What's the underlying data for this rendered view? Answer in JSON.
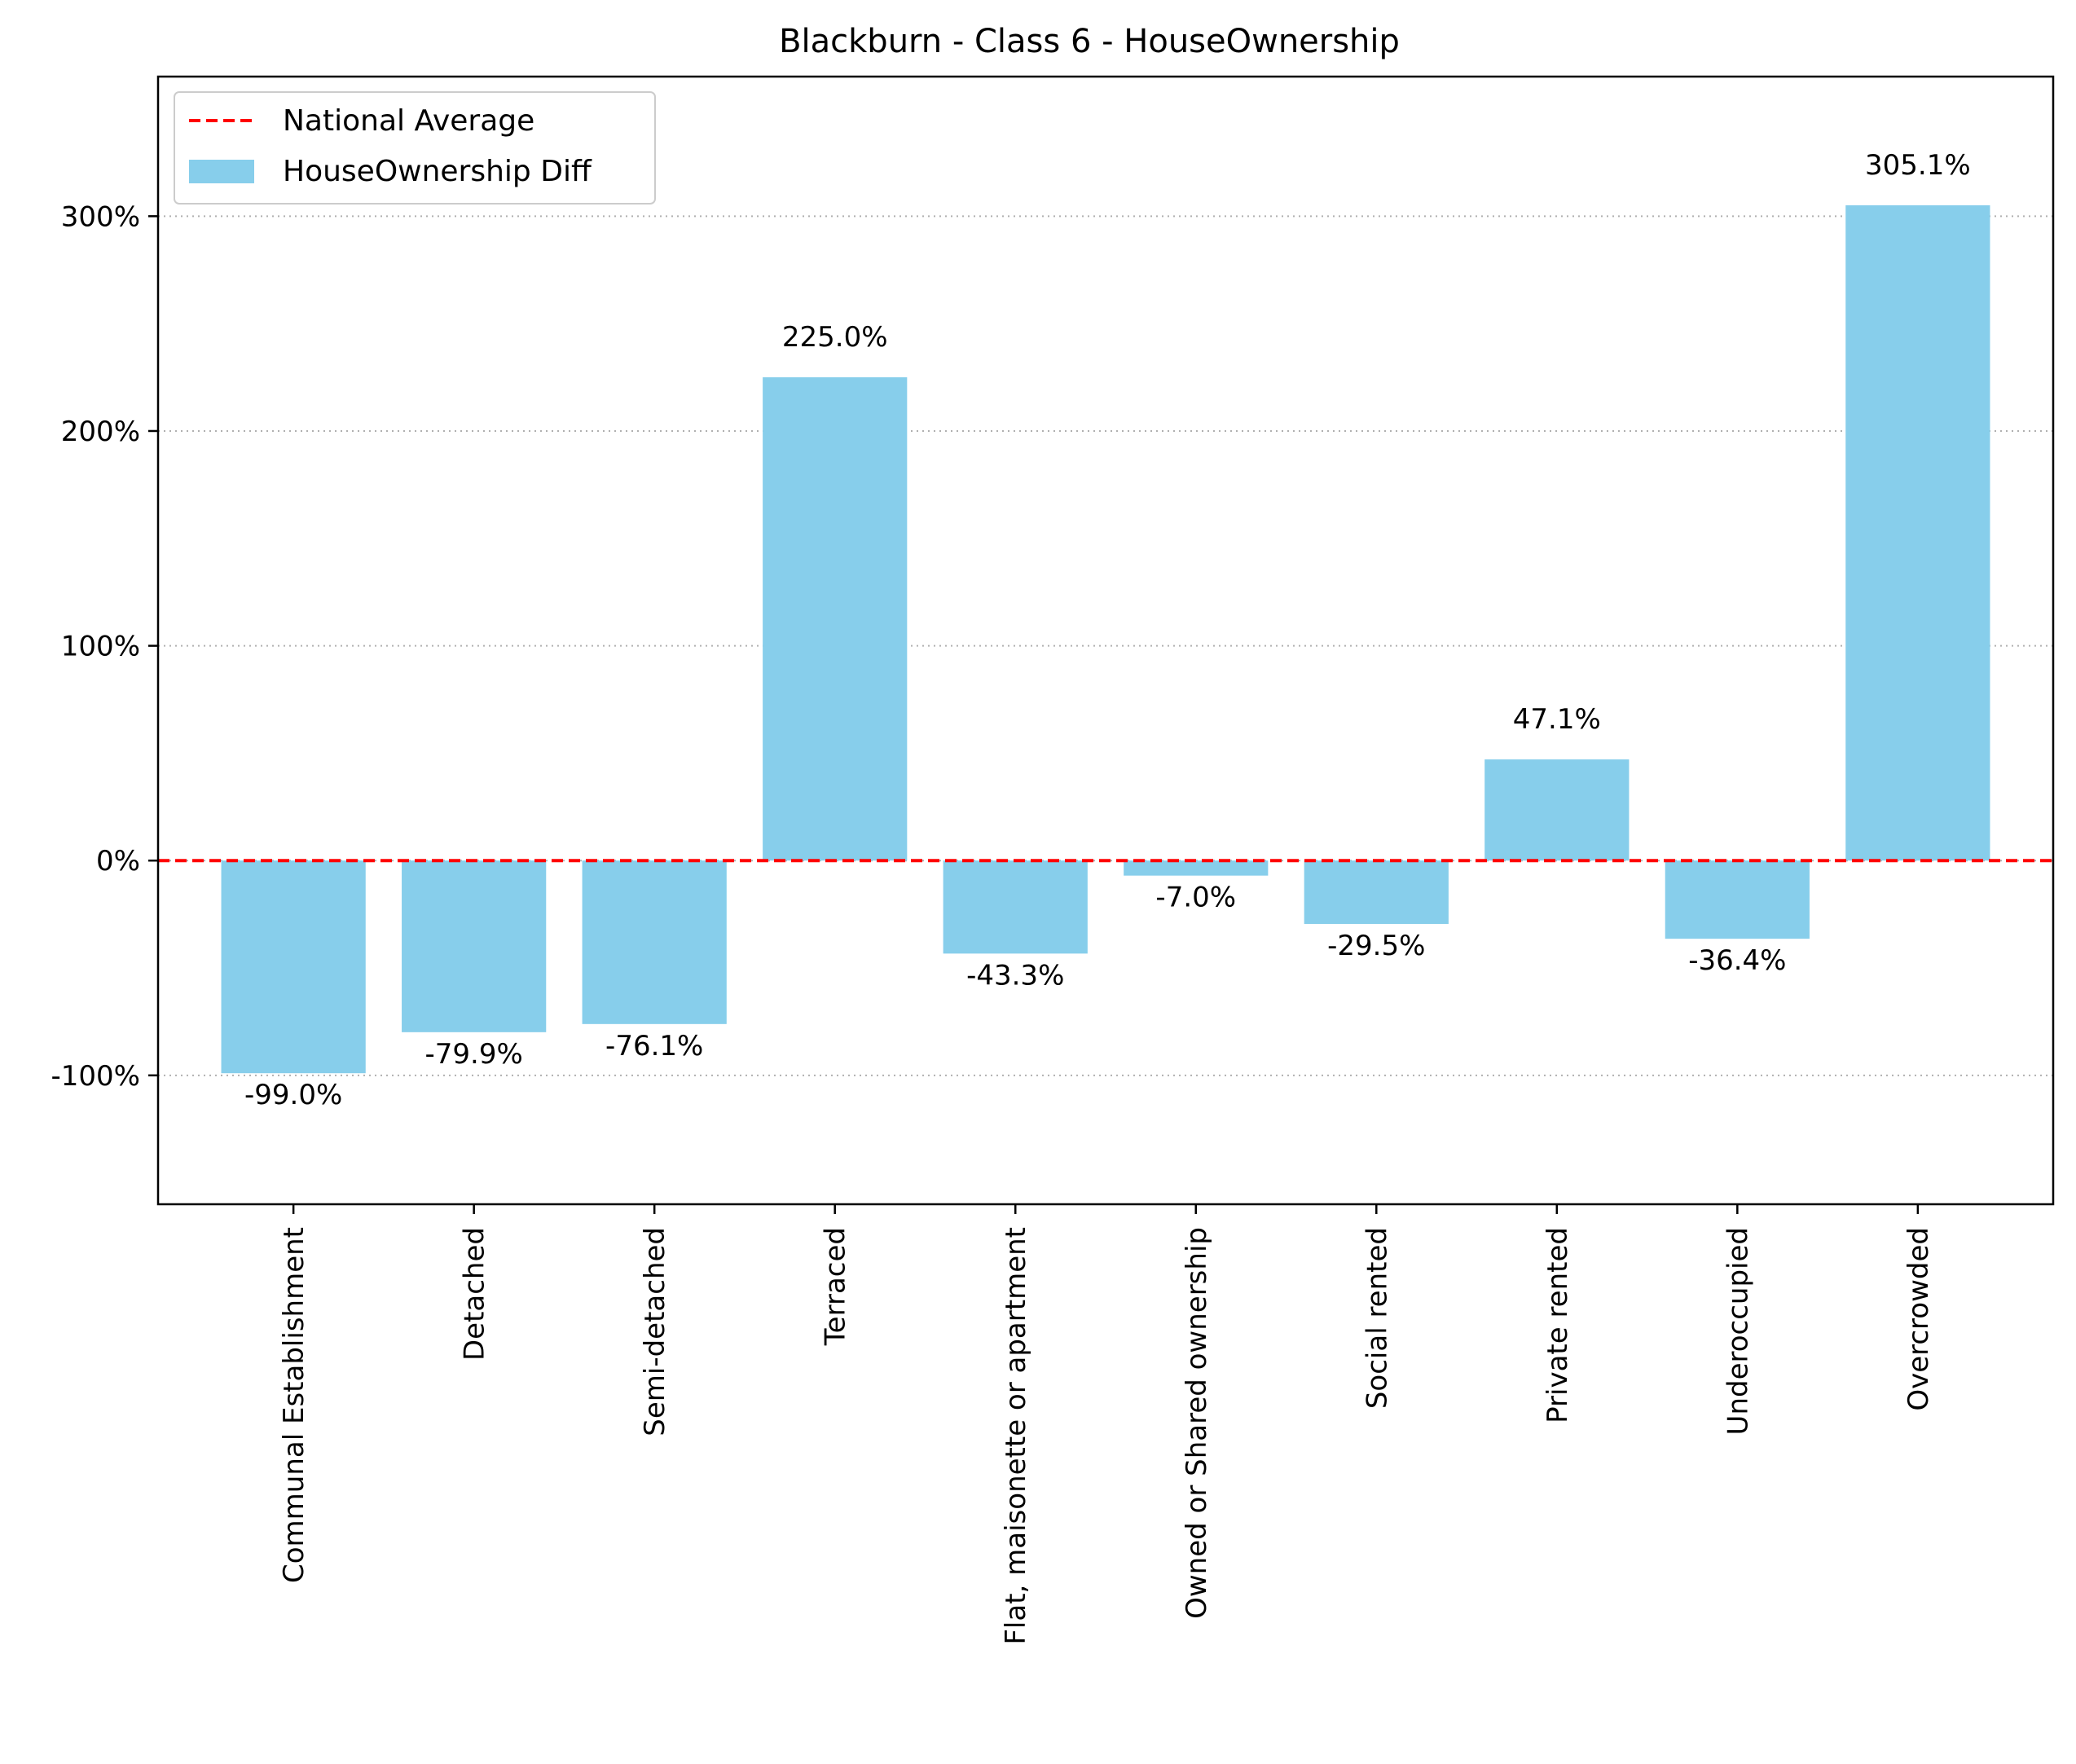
{
  "chart_data": {
    "type": "bar",
    "title": "Blackburn - Class 6 - HouseOwnership",
    "xlabel": "",
    "ylabel": "",
    "categories": [
      "Communal Establishment",
      "Detached",
      "Semi-detached",
      "Terraced",
      "Flat, maisonette or apartment",
      "Owned or Shared ownership",
      "Social rented",
      "Private rented",
      "Underoccupied",
      "Overcrowded"
    ],
    "series": [
      {
        "name": "HouseOwnership Diff",
        "values": [
          -99.0,
          -79.9,
          -76.1,
          225.0,
          -43.3,
          -7.0,
          -29.5,
          47.1,
          -36.4,
          305.1
        ]
      }
    ],
    "data_labels": [
      "-99.0%",
      "-79.9%",
      "-76.1%",
      "225.0%",
      "-43.3%",
      "-7.0%",
      "-29.5%",
      "47.1%",
      "-36.4%",
      "305.1%"
    ],
    "reference_line": {
      "name": "National Average",
      "value": 0,
      "color": "#ff0000",
      "style": "dashed"
    },
    "bar_color": "#87ceeb",
    "ylim": [
      -160,
      365
    ],
    "yticks": [
      -100,
      0,
      100,
      200,
      300
    ],
    "ytick_labels": [
      "-100%",
      "0%",
      "100%",
      "200%",
      "300%"
    ],
    "grid": {
      "axis": "y",
      "style": "dotted"
    },
    "legend": {
      "placement": "top-left",
      "entries": [
        "National Average",
        "HouseOwnership Diff"
      ]
    }
  }
}
